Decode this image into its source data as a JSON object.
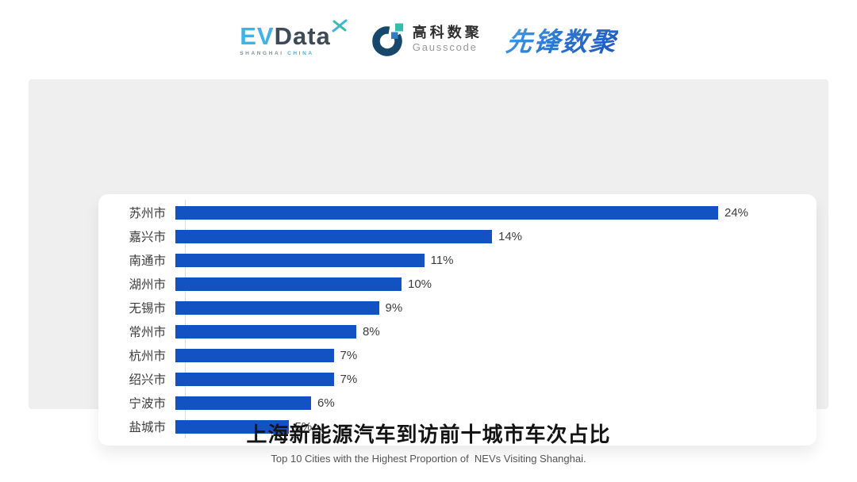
{
  "header": {
    "evdata": {
      "part1": "EV",
      "part2": "Data",
      "sub1": "SHANGHAI",
      "sub2": "CHINA"
    },
    "gausscode": {
      "name_cn": "高科数聚",
      "name_en": "Gausscode"
    },
    "pioneer": {
      "name": "先锋数聚"
    }
  },
  "chart_data": {
    "type": "bar",
    "orientation": "horizontal",
    "categories": [
      "苏州市",
      "嘉兴市",
      "南通市",
      "湖州市",
      "无锡市",
      "常州市",
      "杭州市",
      "绍兴市",
      "宁波市",
      "盐城市"
    ],
    "values": [
      24,
      14,
      11,
      10,
      9,
      8,
      7,
      7,
      6,
      5
    ],
    "value_suffix": "%",
    "value_labels": [
      "24%",
      "14%",
      "11%",
      "10%",
      "9%",
      "8%",
      "7%",
      "7%",
      "6%",
      "5%"
    ],
    "xlim": [
      0,
      24
    ],
    "grid": false,
    "legend": false,
    "sorted": "descending",
    "title": "上海新能源汽车到访前十城市车次占比",
    "subtitle": "Top 10 Cities with the Highest Proportion of  NEVs Visiting Shanghai."
  },
  "colors": {
    "page_bg": "#ffffff",
    "panel_bg": "#efefef",
    "card_bg": "#ffffff",
    "bar": "#1252c3",
    "axis_line": "#dcdcdc",
    "label_text": "#3c3c3c",
    "title_text": "#141414",
    "subtitle_text": "#555555",
    "evdata_blue": "#41b2e6",
    "evdata_dark": "#3d4b59",
    "gauss_ring": "#17486b",
    "gauss_teal": "#35bcaa",
    "gauss_blue": "#2d7ec4",
    "pioneer_blue_start": "#4aa3e8",
    "pioneer_blue_end": "#1d55c0"
  }
}
